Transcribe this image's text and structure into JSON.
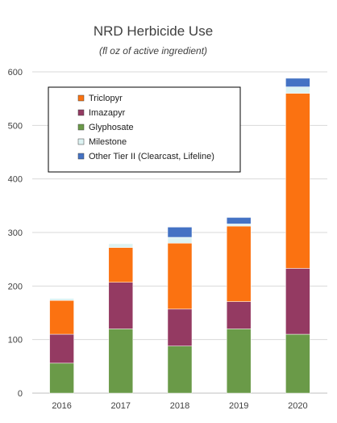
{
  "chart_data": {
    "type": "bar",
    "stacked": true,
    "title": "NRD Herbicide Use",
    "subtitle": "(fl oz of active ingredient)",
    "xlabel": "",
    "ylabel": "",
    "ylim": [
      0,
      600
    ],
    "yticks": [
      0,
      100,
      200,
      300,
      400,
      500,
      600
    ],
    "grid": true,
    "legend_position": "top-left",
    "categories": [
      "2016",
      "2017",
      "2018",
      "2019",
      "2020"
    ],
    "series": [
      {
        "name": "Glyphosate",
        "color": "#6a9a48",
        "values": [
          56,
          120,
          88,
          120,
          110
        ]
      },
      {
        "name": "Imazapyr",
        "color": "#943a62",
        "values": [
          54,
          87,
          69,
          51,
          123
        ]
      },
      {
        "name": "Triclopyr",
        "color": "#fb7211",
        "values": [
          63,
          65,
          123,
          141,
          327
        ]
      },
      {
        "name": "Milestone",
        "color": "#ddf3f3",
        "values": [
          4,
          7,
          11,
          4,
          12
        ]
      },
      {
        "name": "Other Tier II (Clearcast, Lifeline)",
        "color": "#4472c4",
        "values": [
          0,
          0,
          19,
          12,
          16
        ]
      }
    ],
    "legend_order": [
      "Triclopyr",
      "Imazapyr",
      "Glyphosate",
      "Milestone",
      "Other Tier II (Clearcast, Lifeline)"
    ]
  }
}
